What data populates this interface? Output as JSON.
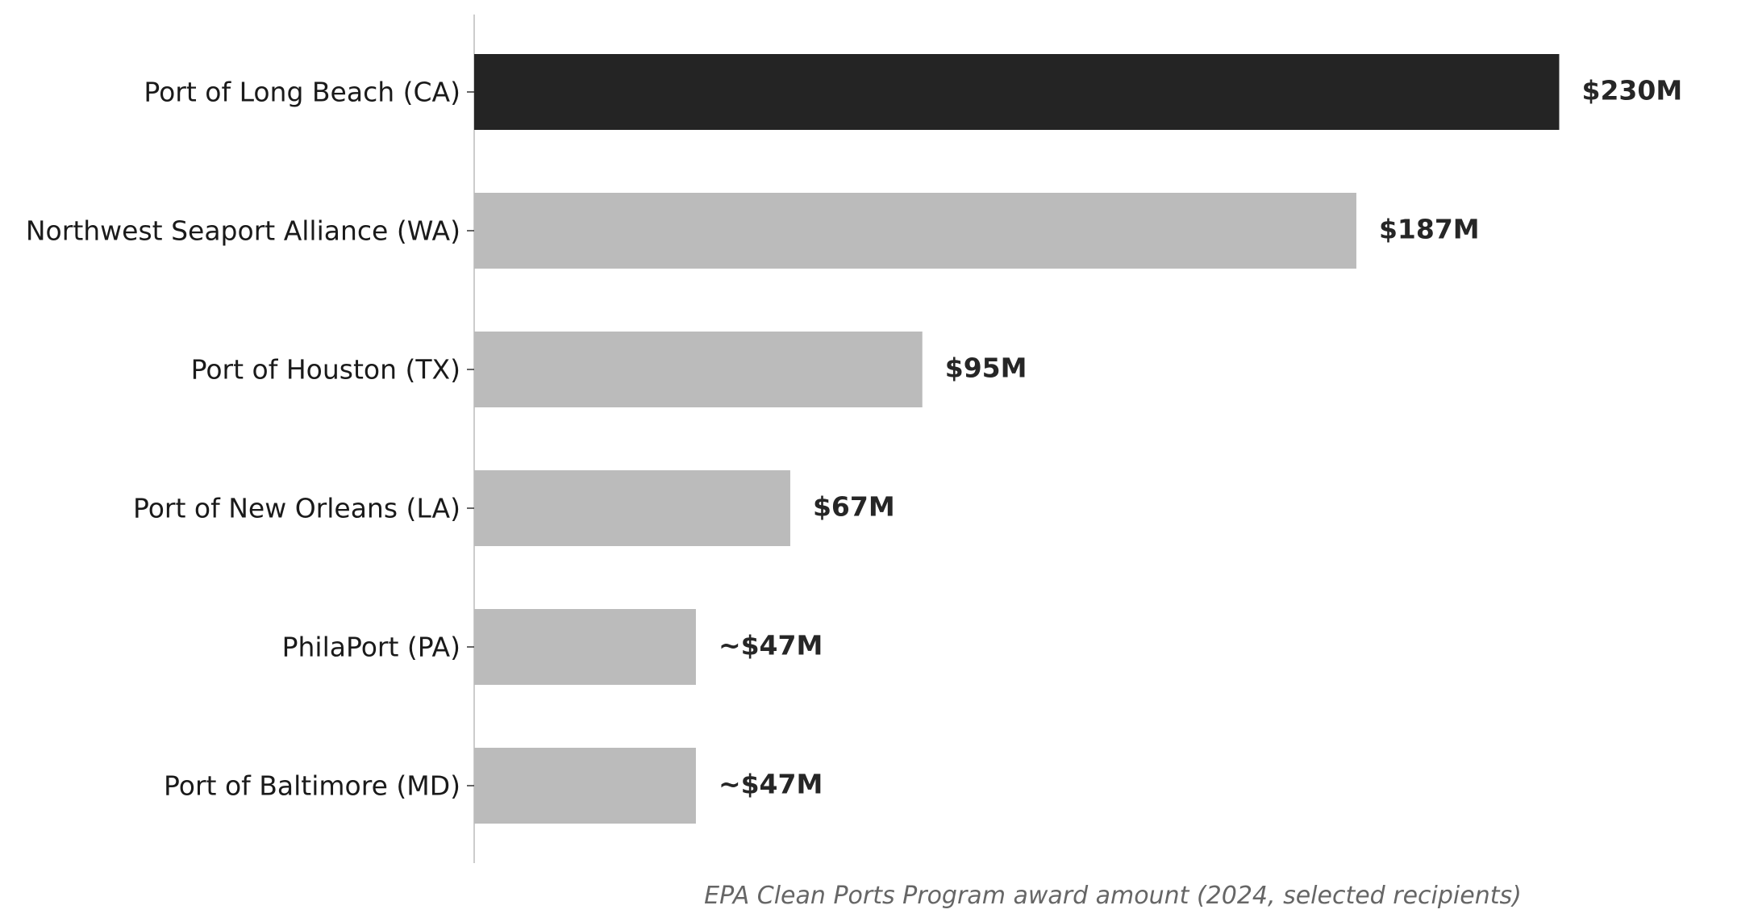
{
  "chart_data": {
    "type": "bar",
    "orientation": "horizontal",
    "categories": [
      "Port of Long Beach (CA)",
      "Northwest Seaport Alliance (WA)",
      "Port of Houston (TX)",
      "Port of New Orleans (LA)",
      "PhilaPort (PA)",
      "Port of Baltimore (MD)"
    ],
    "values": [
      230,
      187,
      95,
      67,
      47,
      47
    ],
    "value_labels": [
      "$230M",
      "$187M",
      "$95M",
      "$67M",
      "~$47M",
      "~$47M"
    ],
    "highlight_index": 0,
    "colors": {
      "highlight": "#242424",
      "default": "#bbbbbb",
      "axis": "#cccccc",
      "label": "#262626",
      "caption": "#666666"
    },
    "xlabel": "EPA Clean Ports Program award amount (2024, selected recipients)",
    "ylabel": "",
    "title": "",
    "xlim": [
      0,
      275
    ],
    "grid": false,
    "legend": "none"
  }
}
